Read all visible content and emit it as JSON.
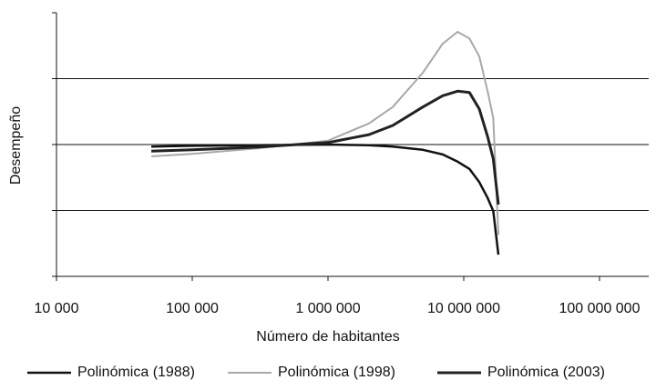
{
  "chart_data": {
    "type": "line",
    "x_label": "Número de habitantes",
    "y_label": "Desempeño",
    "log_x": true,
    "grid": true,
    "legend": "bottom",
    "x": [
      50000,
      100000,
      300000,
      1000000,
      2000000,
      3000000,
      5000000,
      7000000,
      9000000,
      11000000,
      13000000,
      15000000,
      16500000,
      18000000
    ],
    "series": [
      {
        "name": "Polinómica (1988)",
        "color": "#111111",
        "values": [
          1.97,
          1.98,
          1.99,
          2.0,
          1.99,
          1.97,
          1.92,
          1.85,
          1.74,
          1.63,
          1.43,
          1.19,
          0.99,
          0.33
        ]
      },
      {
        "name": "Polinómica (1998)",
        "color": "#a8a8a8",
        "values": [
          1.82,
          1.86,
          1.94,
          2.06,
          2.32,
          2.57,
          3.09,
          3.53,
          3.71,
          3.61,
          3.34,
          2.81,
          2.4,
          0.63
        ]
      },
      {
        "name": "Polinómica (2003)",
        "color": "#222222",
        "values": [
          1.9,
          1.92,
          1.96,
          2.03,
          2.15,
          2.29,
          2.57,
          2.74,
          2.81,
          2.79,
          2.54,
          2.12,
          1.78,
          1.09
        ]
      }
    ],
    "xlim": [
      10000,
      100000000
    ],
    "xticks": [
      {
        "value": 10000,
        "label": "10 000"
      },
      {
        "value": 100000,
        "label": "100 000"
      },
      {
        "value": 1000000,
        "label": "1 000 000"
      },
      {
        "value": 10000000,
        "label": "10 000 000"
      },
      {
        "value": 100000000,
        "label": "100 000 000"
      }
    ],
    "ylim": [
      0,
      4
    ],
    "yticks": [
      0,
      1,
      2,
      3,
      4
    ]
  }
}
